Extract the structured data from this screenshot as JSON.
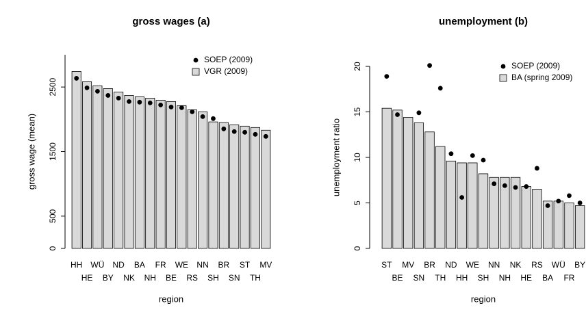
{
  "chart_data": [
    {
      "type": "bar",
      "title": "gross wages (a)",
      "x_label": "region",
      "y_label": "gross wage (mean)",
      "categories": [
        "HH",
        "HE",
        "WÜ",
        "BY",
        "ND",
        "NK",
        "BA",
        "NH",
        "FR",
        "BE",
        "WE",
        "RS",
        "NN",
        "SH",
        "BR",
        "SN",
        "ST",
        "TH",
        "MV"
      ],
      "series": [
        {
          "name": "SOEP (2009)",
          "style": "point",
          "color": "#000000",
          "values": [
            2635,
            2487,
            2434,
            2370,
            2328,
            2275,
            2265,
            2254,
            2222,
            2190,
            2180,
            2116,
            2042,
            2011,
            1852,
            1810,
            1799,
            1767,
            1735
          ]
        },
        {
          "name": "VGR (2009)",
          "style": "bar",
          "color": "#d9d9d9",
          "values": [
            2741,
            2582,
            2519,
            2476,
            2423,
            2370,
            2349,
            2328,
            2296,
            2275,
            2212,
            2148,
            2116,
            1960,
            1950,
            1915,
            1894,
            1873,
            1831
          ]
        }
      ],
      "ylim": [
        0,
        3000
      ],
      "yticks": [
        0,
        500,
        1500,
        2500
      ],
      "legend": "topright"
    },
    {
      "type": "bar",
      "title": "unemployment (b)",
      "x_label": "region",
      "y_label": "unemployment ratio",
      "categories": [
        "ST",
        "BE",
        "MV",
        "SN",
        "BR",
        "TH",
        "ND",
        "HH",
        "WE",
        "SH",
        "NN",
        "NH",
        "NK",
        "HE",
        "RS",
        "BA",
        "WÜ",
        "FR",
        "BY"
      ],
      "series": [
        {
          "name": "SOEP (2009)",
          "style": "point",
          "color": "#000000",
          "values": [
            18.9,
            14.7,
            null,
            14.9,
            20.1,
            17.6,
            10.4,
            5.6,
            10.2,
            9.7,
            7.1,
            6.9,
            6.7,
            6.8,
            8.8,
            4.7,
            5.2,
            5.8,
            5.0
          ]
        },
        {
          "name": "BA (spring 2009)",
          "style": "bar",
          "color": "#d9d9d9",
          "values": [
            15.4,
            15.2,
            14.4,
            13.8,
            12.8,
            11.2,
            9.6,
            9.4,
            9.4,
            8.2,
            7.8,
            7.8,
            7.8,
            6.8,
            6.5,
            5.2,
            5.2,
            5.0,
            4.7
          ]
        }
      ],
      "ylim": [
        0,
        20
      ],
      "yticks": [
        0,
        5,
        10,
        15,
        20
      ],
      "legend": "topright"
    }
  ]
}
